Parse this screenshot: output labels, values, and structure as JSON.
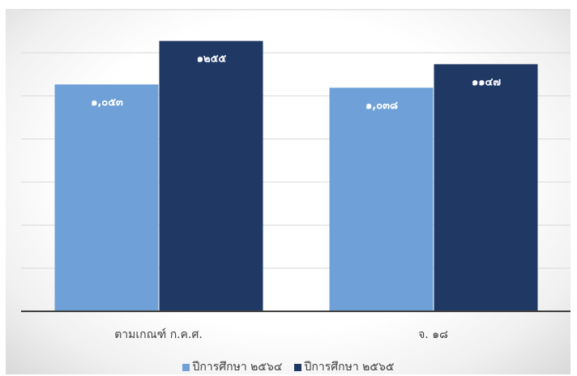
{
  "chart_data": {
    "type": "bar",
    "title": "",
    "xlabel": "",
    "ylabel": "",
    "categories": [
      "ตามเกณฑ์ ก.ค.ศ.",
      "จ. ๑๘"
    ],
    "series": [
      {
        "name": "ปีการศึกษา ๒๕๖๔",
        "color": "#6fa1d8",
        "values": [
          1053,
          1038
        ],
        "labels": [
          "๑,๐๕๓",
          "๑,๐๓๘"
        ]
      },
      {
        "name": "ปีการศึกษา ๒๕๖๕",
        "color": "#1f3864",
        "values": [
          1255,
          1147
        ],
        "labels": [
          "๑๒๕๕",
          "๑๑๔๗"
        ]
      }
    ],
    "ylim": [
      0,
      1400
    ],
    "grid": true,
    "legend_position": "bottom"
  }
}
